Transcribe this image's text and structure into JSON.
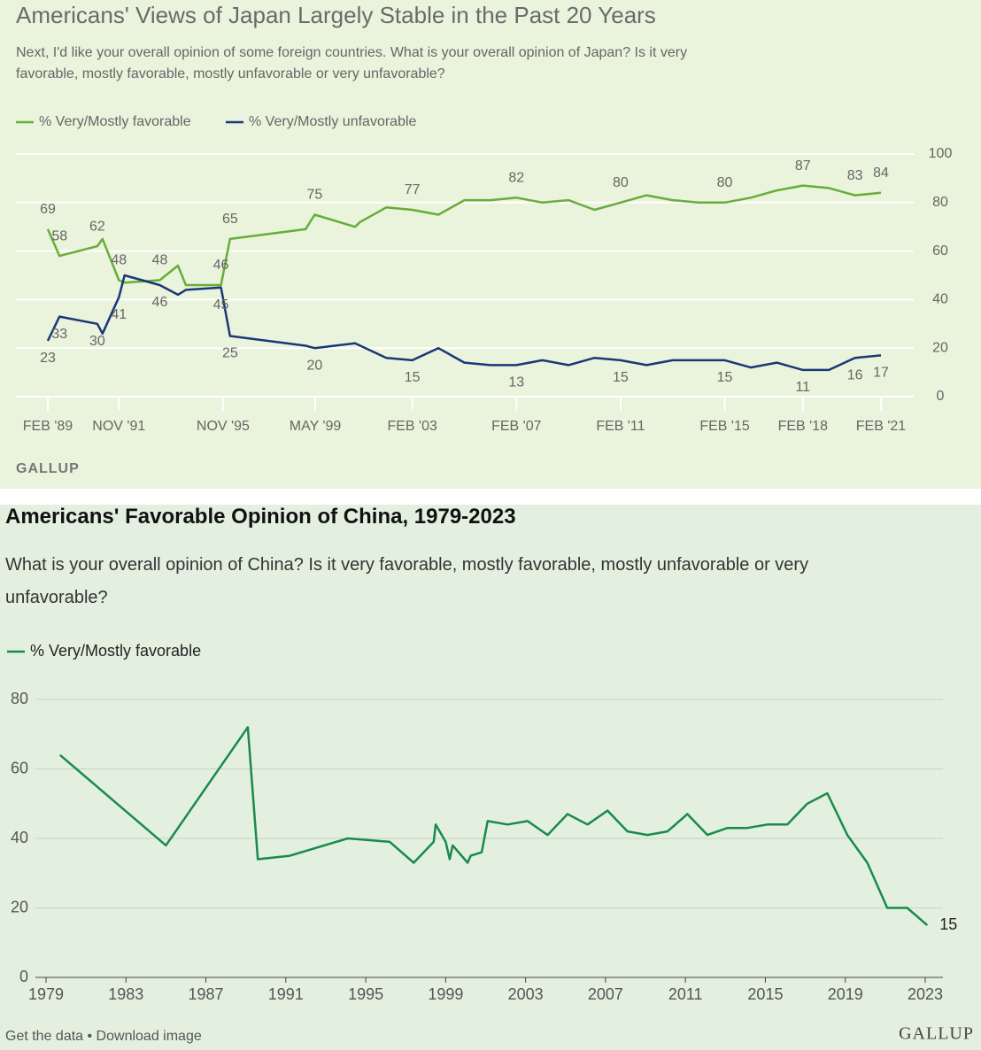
{
  "chart_data": [
    {
      "type": "line",
      "title": "Americans' Views of Japan Largely Stable in the Past 20 Years",
      "subtitle": "Next, I'd like your overall opinion of some foreign countries. What is your overall opinion of Japan? Is it very favorable, mostly favorable, mostly unfavorable or very unfavorable?",
      "source": "GALLUP",
      "x": [
        1989.1,
        1989.55,
        1991.0,
        1991.2,
        1991.83,
        1992.05,
        1993.4,
        1994.1,
        1994.4,
        1995.75,
        1996.1,
        1999.0,
        1999.35,
        2000.9,
        2001.1,
        2002.1,
        2003.1,
        2004.1,
        2005.1,
        2006.1,
        2007.1,
        2008.1,
        2009.1,
        2010.1,
        2011.1,
        2012.1,
        2013.1,
        2014.1,
        2015.1,
        2016.1,
        2017.1,
        2018.1,
        2019.1,
        2020.1,
        2021.1
      ],
      "series": [
        {
          "name": "% Very/Mostly favorable",
          "color": "#67ad3a",
          "values": [
            69,
            58,
            62,
            65,
            48,
            47,
            48,
            54,
            46,
            46,
            65,
            69,
            75,
            70,
            72,
            78,
            77,
            75,
            81,
            81,
            82,
            80,
            81,
            77,
            80,
            83,
            81,
            80,
            80,
            82,
            85,
            87,
            86,
            83,
            84
          ],
          "value_labels": [
            "69",
            "58",
            "62",
            null,
            "48",
            null,
            "48",
            null,
            null,
            "46",
            "65",
            null,
            "75",
            null,
            null,
            null,
            "77",
            null,
            null,
            null,
            "82",
            null,
            null,
            null,
            "80",
            null,
            null,
            null,
            "80",
            null,
            null,
            "87",
            null,
            "83",
            "84"
          ]
        },
        {
          "name": "% Very/Mostly unfavorable",
          "color": "#1b3777",
          "values": [
            23,
            33,
            30,
            26,
            41,
            50,
            46,
            42,
            44,
            45,
            25,
            21,
            20,
            22,
            21,
            16,
            15,
            20,
            14,
            13,
            13,
            15,
            13,
            16,
            15,
            13,
            15,
            15,
            15,
            12,
            14,
            11,
            11,
            16,
            17
          ],
          "value_labels": [
            "23",
            "33",
            "30",
            null,
            "41",
            null,
            "46",
            null,
            null,
            "45",
            "25",
            null,
            "20",
            null,
            null,
            null,
            "15",
            null,
            null,
            null,
            "13",
            null,
            null,
            null,
            "15",
            null,
            null,
            null,
            "15",
            null,
            null,
            "11",
            null,
            "16",
            "17"
          ]
        }
      ],
      "xlim": [
        1989.1,
        2021.1
      ],
      "xticks": [
        {
          "value": 1989.1,
          "label": "FEB '89"
        },
        {
          "value": 1991.83,
          "label": "NOV '91"
        },
        {
          "value": 1995.83,
          "label": "NOV '95"
        },
        {
          "value": 1999.37,
          "label": "MAY '99"
        },
        {
          "value": 2003.1,
          "label": "FEB '03"
        },
        {
          "value": 2007.1,
          "label": "FEB '07"
        },
        {
          "value": 2011.1,
          "label": "FEB '11"
        },
        {
          "value": 2015.1,
          "label": "FEB '15"
        },
        {
          "value": 2018.1,
          "label": "FEB '18"
        },
        {
          "value": 2021.1,
          "label": "FEB '21"
        }
      ],
      "ylim": [
        0,
        100
      ],
      "yticks": [
        0,
        20,
        40,
        60,
        80,
        100
      ],
      "grid": true
    },
    {
      "type": "line",
      "title": "Americans' Favorable Opinion of China, 1979-2023",
      "subtitle": "What is your overall opinion of China? Is it very favorable, mostly favorable, mostly unfavorable or very unfavorable?",
      "footer": "Get the data • Download image",
      "source": "GALLUP",
      "x": [
        1979.7,
        1985.0,
        1989.1,
        1989.6,
        1991.2,
        1994.1,
        1996.2,
        1997.4,
        1998.4,
        1998.5,
        1999.0,
        1999.2,
        1999.35,
        2000.1,
        2000.25,
        2000.8,
        2001.1,
        2002.1,
        2003.1,
        2004.1,
        2005.1,
        2006.1,
        2007.1,
        2008.1,
        2009.1,
        2010.1,
        2011.1,
        2012.1,
        2013.1,
        2014.1,
        2015.1,
        2016.1,
        2017.1,
        2018.1,
        2019.1,
        2020.1,
        2021.1,
        2022.1,
        2023.1
      ],
      "series": [
        {
          "name": "% Very/Mostly favorable",
          "color": "#1a8a4a",
          "values": [
            64,
            38,
            72,
            34,
            35,
            40,
            39,
            33,
            39,
            44,
            39,
            34,
            38,
            33,
            35,
            36,
            45,
            44,
            45,
            41,
            47,
            44,
            48,
            42,
            41,
            42,
            47,
            41,
            43,
            43,
            44,
            44,
            50,
            53,
            41,
            33,
            20,
            20,
            15
          ],
          "value_labels": [
            null,
            null,
            null,
            null,
            null,
            null,
            null,
            null,
            null,
            null,
            null,
            null,
            null,
            null,
            null,
            null,
            null,
            null,
            null,
            null,
            null,
            null,
            null,
            null,
            null,
            null,
            null,
            null,
            null,
            null,
            null,
            null,
            null,
            null,
            null,
            null,
            null,
            null,
            "15"
          ]
        }
      ],
      "xlim": [
        1979,
        2023
      ],
      "xticks": [
        1979,
        1983,
        1987,
        1991,
        1995,
        1999,
        2003,
        2007,
        2011,
        2015,
        2019,
        2023
      ],
      "ylim": [
        0,
        80
      ],
      "yticks": [
        0,
        20,
        40,
        60,
        80
      ],
      "grid": true
    }
  ]
}
